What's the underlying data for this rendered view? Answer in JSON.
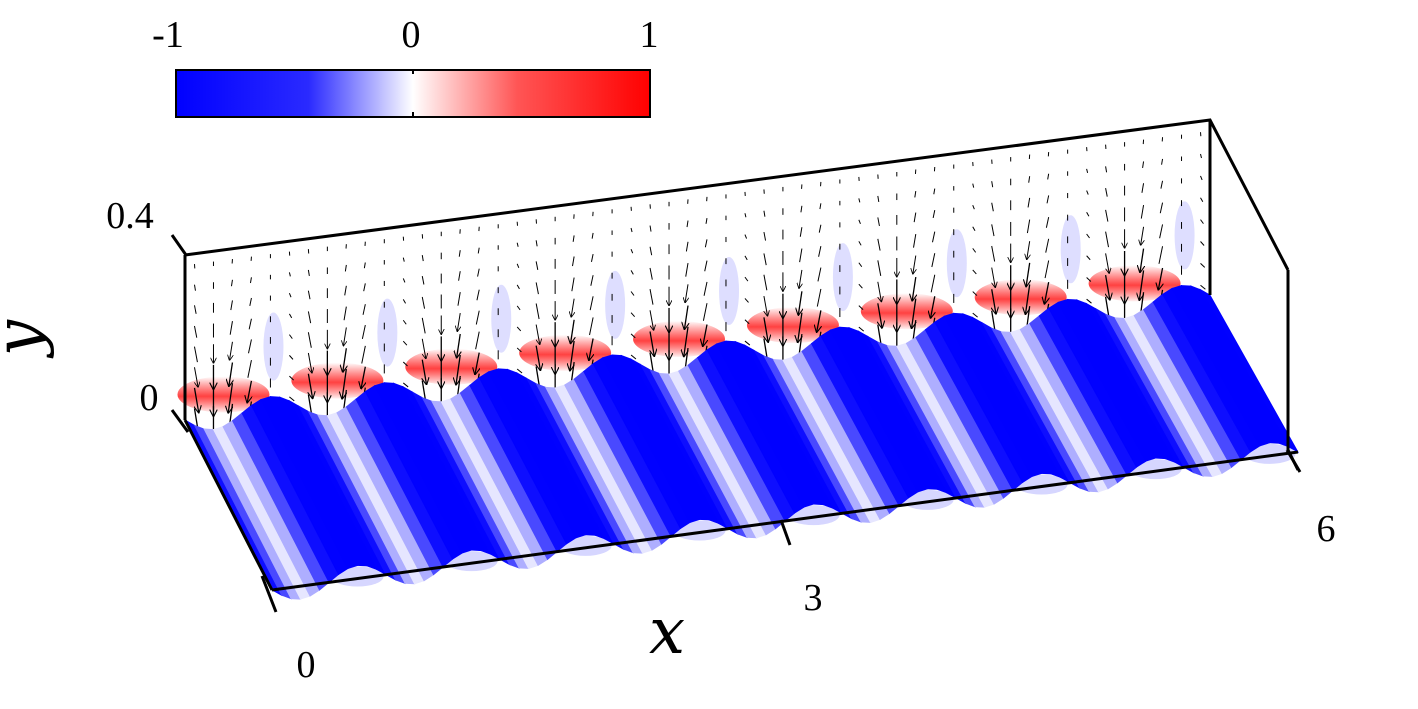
{
  "chart_data": {
    "type": "heatmap",
    "title": "",
    "xlabel": "x",
    "ylabel": "y",
    "x_ticks": [
      "0",
      "3",
      "6"
    ],
    "y_ticks": [
      "0",
      "0.4"
    ],
    "xlim": [
      0,
      6
    ],
    "ylim": [
      0,
      0.4
    ],
    "wave_count": 9,
    "colorbar": {
      "ticks": [
        "-1",
        "0",
        "1"
      ],
      "range": [
        -1,
        1
      ],
      "colors": [
        "#0000ff",
        "#ffffff",
        "#ff0000"
      ],
      "placement": "top-left"
    },
    "colors": {
      "negative": "#0000ff",
      "neutral": "#ffffff",
      "positive": "#ff0000",
      "arrows": "#000000",
      "axes": "#000000"
    }
  }
}
